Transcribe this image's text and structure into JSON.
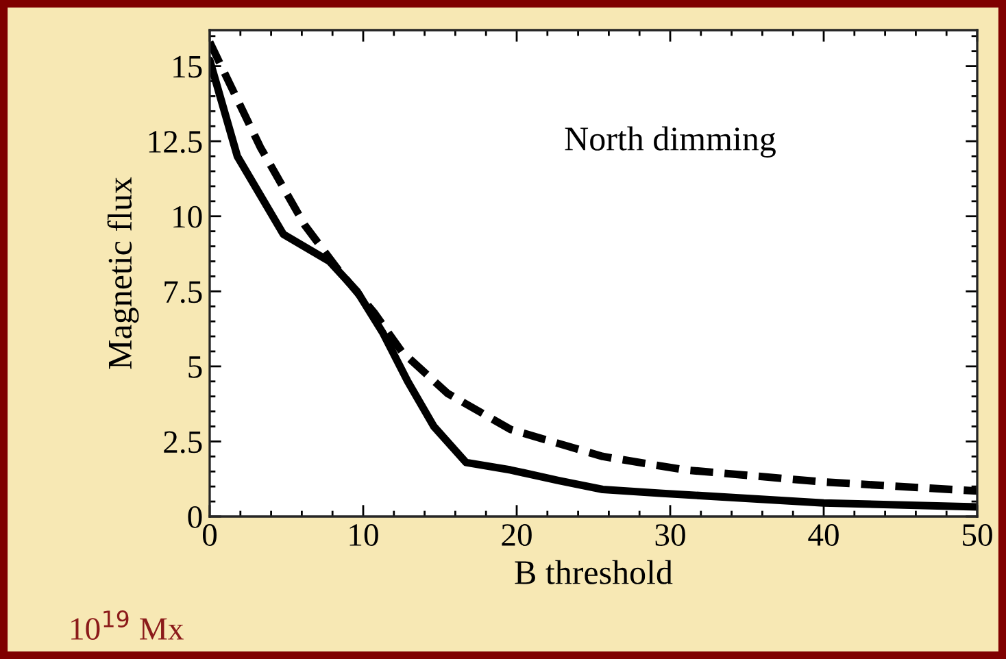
{
  "chart_data": {
    "type": "line",
    "xlabel": "B threshold",
    "ylabel": "Magnetic flux",
    "annotations": [
      "North dimming",
      "10$^{19}$ Mx"
    ],
    "xlim": [
      0,
      50
    ],
    "ylim": [
      0,
      16.2
    ],
    "xticks": [
      0,
      10,
      20,
      30,
      40,
      50
    ],
    "yticks": [
      0,
      2.5,
      5,
      7.5,
      10,
      12.5,
      15
    ],
    "grid": false,
    "series": [
      {
        "color": "#000000",
        "line_style": "solid",
        "x": [
          0,
          1.8,
          4.8,
          7.8,
          9.6,
          11.3,
          12.9,
          14.6,
          16.7,
          19.6,
          22.7,
          25.6,
          29.5,
          40,
          50
        ],
        "values": [
          15.2,
          12.0,
          9.4,
          8.5,
          7.5,
          6.1,
          4.5,
          3.0,
          1.8,
          1.55,
          1.2,
          0.9,
          0.77,
          0.45,
          0.32
        ]
      },
      {
        "color": "#000000",
        "line_style": "dashed",
        "x": [
          0,
          3.3,
          6.2,
          8.4,
          10.7,
          12.5,
          15.5,
          19.6,
          25.6,
          31,
          40,
          50
        ],
        "values": [
          15.8,
          12.3,
          9.7,
          8.2,
          6.8,
          5.5,
          4.1,
          2.9,
          2.0,
          1.55,
          1.15,
          0.85
        ]
      }
    ]
  }
}
